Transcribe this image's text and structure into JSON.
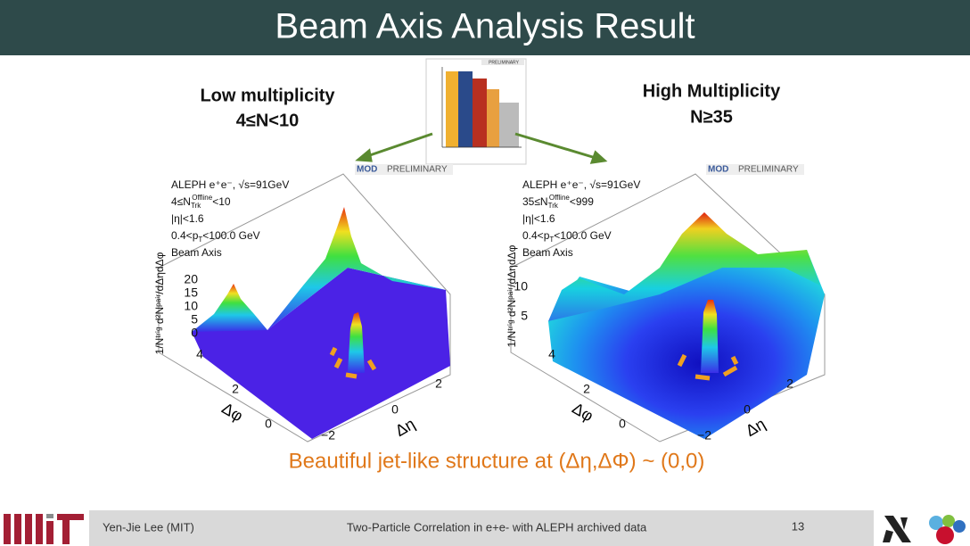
{
  "header": {
    "title": "Beam Axis Analysis Result"
  },
  "panels": [
    {
      "label": [
        "Low multiplicity",
        "4≤N<10"
      ],
      "plot": {
        "badge": "MOD",
        "badge_text": "PRELIMINARY",
        "info": [
          [
            {
              "t": "ALEPH e⁺e⁻, √s=91GeV"
            }
          ],
          [
            {
              "t": "4≤N"
            },
            {
              "t": "Trk",
              "pos": "sub"
            },
            {
              "t": "Offline",
              "pos": "sup"
            },
            {
              "t": "<10"
            }
          ],
          [
            {
              "t": "|η|<1.6"
            }
          ],
          [
            {
              "t": "0.4<p"
            },
            {
              "t": "T",
              "pos": "sub"
            },
            {
              "t": "<100.0 GeV"
            }
          ],
          [
            {
              "t": "Beam Axis"
            }
          ]
        ],
        "z_label": "1/Nᵗʳⁱᵍ d²Nᵖᵃⁱʳ/dΔηdΔφ",
        "z_ticks": [
          "20",
          "15",
          "10",
          "5",
          "0"
        ],
        "phi_ticks": [
          "4",
          "2",
          "0"
        ],
        "phi_label": "Δφ",
        "eta_ticks": [
          "−2",
          "0",
          "2"
        ],
        "eta_label": "Δη"
      }
    },
    {
      "label": [
        "High Multiplicity",
        "N≥35"
      ],
      "plot": {
        "badge": "MOD",
        "badge_text": "PRELIMINARY",
        "info": [
          [
            {
              "t": "ALEPH e⁺e⁻, √s=91GeV"
            }
          ],
          [
            {
              "t": "35≤N"
            },
            {
              "t": "Trk",
              "pos": "sub"
            },
            {
              "t": "Offline",
              "pos": "sup"
            },
            {
              "t": "<999"
            }
          ],
          [
            {
              "t": "|η|<1.6"
            }
          ],
          [
            {
              "t": "0.4<p"
            },
            {
              "t": "T",
              "pos": "sub"
            },
            {
              "t": "<100.0 GeV"
            }
          ],
          [
            {
              "t": "Beam Axis"
            }
          ]
        ],
        "z_label": "1/Nᵗʳⁱᵍ d²Nᵖᵃⁱʳ/dΔηdΔφ",
        "z_ticks": [
          "10",
          "5"
        ],
        "phi_ticks": [
          "4",
          "2",
          "0"
        ],
        "phi_label": "Δφ",
        "eta_ticks": [
          "−2",
          "0",
          "2"
        ],
        "eta_label": "Δη"
      }
    }
  ],
  "inset": {
    "badge_text": "PRELIMINARY"
  },
  "caption": "Beautiful jet-like structure at (Δη,ΔΦ) ~ (0,0)",
  "footer": {
    "author": "Yen-Jie Lee (MIT)",
    "talk": "Two-Particle Correlation in e+e- with ALEPH archived data",
    "page": "13"
  }
}
